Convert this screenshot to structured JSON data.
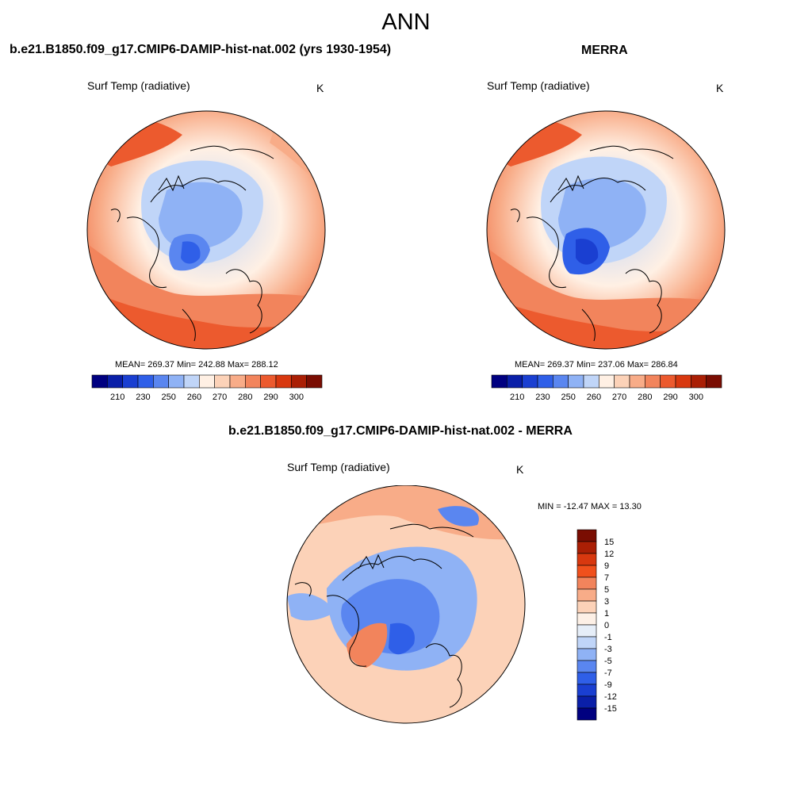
{
  "title": "ANN",
  "panels": [
    {
      "title": "b.e21.B1850.f09_g17.CMIP6-DAMIP-hist-nat.002 (yrs 1930-1954)",
      "variable": "Surf Temp (radiative)",
      "units": "K",
      "stats": "MEAN= 269.37  Min= 242.88  Max= 288.12"
    },
    {
      "title": "MERRA",
      "variable": "Surf Temp (radiative)",
      "units": "K",
      "stats": "MEAN= 269.37  Min= 237.06  Max= 286.84"
    },
    {
      "title": "b.e21.B1850.f09_g17.CMIP6-DAMIP-hist-nat.002 - MERRA",
      "variable": "Surf Temp (radiative)",
      "units": "K",
      "stats": "MIN = -12.47 MAX =  13.30"
    }
  ],
  "colorbar_abs": {
    "orientation": "horizontal",
    "colors": [
      "#000080",
      "#0a1fa8",
      "#1a3fd1",
      "#2f5fe8",
      "#5a86f0",
      "#8fb2f5",
      "#c0d5f8",
      "#fff0e4",
      "#fcd2b8",
      "#f8ac88",
      "#f2845c",
      "#ec5a2e",
      "#d8380f",
      "#aa1f05",
      "#7a0d02"
    ],
    "tick_labels": [
      "210",
      "230",
      "250",
      "260",
      "270",
      "280",
      "290",
      "300"
    ]
  },
  "colorbar_diff": {
    "orientation": "vertical",
    "colors": [
      "#7a0d02",
      "#aa1f05",
      "#d8380f",
      "#f0501c",
      "#f2845c",
      "#f8ac88",
      "#fcd2b8",
      "#fdf0e6",
      "#e6eef8",
      "#c0d5f8",
      "#8fb2f5",
      "#5a86f0",
      "#2f5fe8",
      "#1a3fd1",
      "#0a1fa8",
      "#000080"
    ],
    "tick_labels": [
      "15",
      "12",
      "9",
      "7",
      "5",
      "3",
      "1",
      "0",
      "-1",
      "-3",
      "-5",
      "-7",
      "-9",
      "-12",
      "-15"
    ]
  }
}
